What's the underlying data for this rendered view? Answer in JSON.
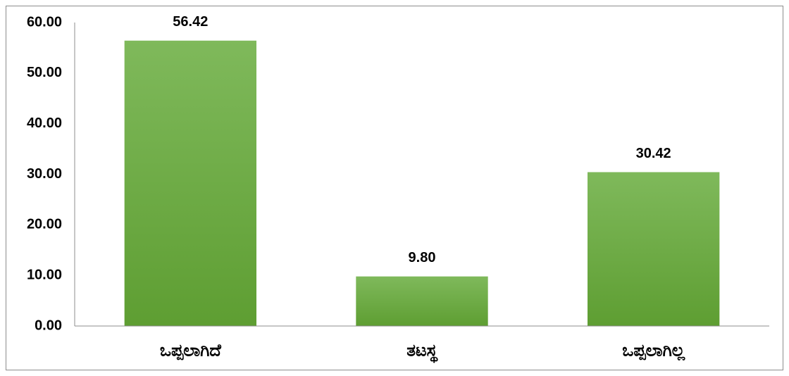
{
  "chart_data": {
    "type": "bar",
    "categories": [
      "ಒಪ್ಪಲಾಗಿದೆ",
      "ತಟಸ್ಥ",
      "ಒಪ್ಪಲಾಗಿಲ್ಲ"
    ],
    "values": [
      56.42,
      9.8,
      30.42
    ],
    "value_labels": [
      "56.42",
      "9.80",
      "30.42"
    ],
    "color": "#6fad42",
    "ylim": [
      0,
      60
    ],
    "yticks": [
      {
        "value": 0,
        "label": "0.00"
      },
      {
        "value": 10,
        "label": "10.00"
      },
      {
        "value": 20,
        "label": "20.00"
      },
      {
        "value": 30,
        "label": "30.00"
      },
      {
        "value": 40,
        "label": "40.00"
      },
      {
        "value": 50,
        "label": "50.00"
      },
      {
        "value": 60,
        "label": "60.00"
      }
    ],
    "grid": false
  }
}
